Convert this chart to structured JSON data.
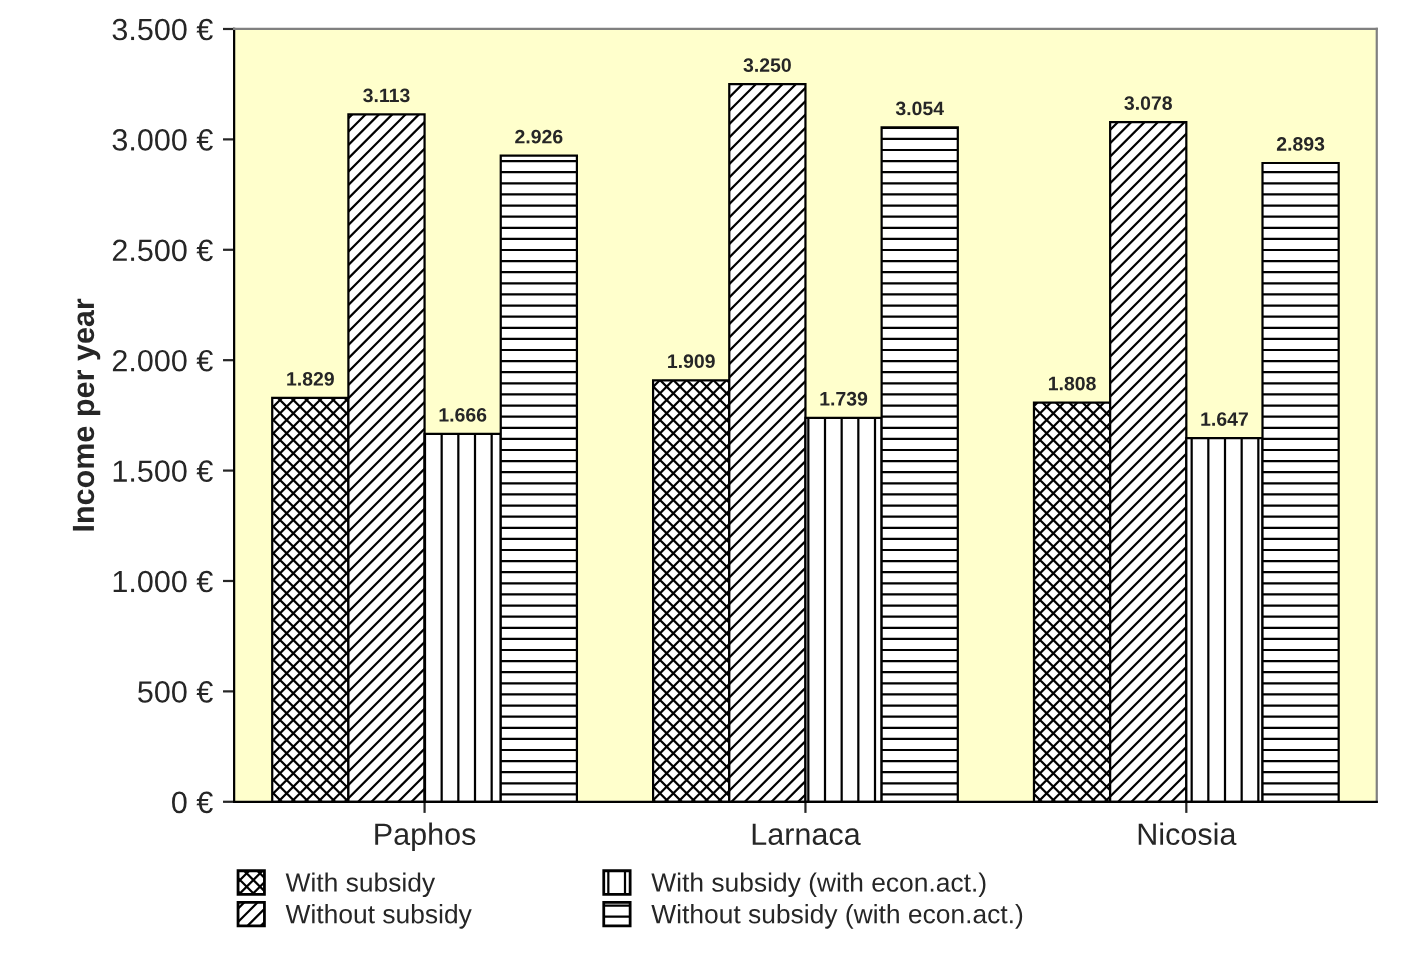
{
  "chart_data": {
    "type": "bar",
    "ylabel": "Income per year",
    "categories": [
      "Paphos",
      "Larnaca",
      "Nicosia"
    ],
    "series": [
      {
        "name": "With subsidy",
        "color": "#000000",
        "values": [
          1829,
          1909,
          1808
        ],
        "value_labels": [
          "1.829",
          "1.909",
          "1.808"
        ]
      },
      {
        "name": "Without subsidy",
        "color": "#000000",
        "values": [
          3113,
          3250,
          3078
        ],
        "value_labels": [
          "3.113",
          "3.250",
          "3.078"
        ]
      },
      {
        "name": "With subsidy (with econ.act.)",
        "color": "#000000",
        "values": [
          1666,
          1739,
          1647
        ],
        "value_labels": [
          "1.666",
          "1.739",
          "1.647"
        ]
      },
      {
        "name": "Without subsidy (with econ.act.)",
        "color": "#000000",
        "values": [
          2926,
          3054,
          2893
        ],
        "value_labels": [
          "2.926",
          "3.054",
          "2.893"
        ]
      }
    ],
    "ylim": [
      0,
      3500
    ],
    "yticks": [
      {
        "value": 0,
        "label": "0 €"
      },
      {
        "value": 500,
        "label": "500 €"
      },
      {
        "value": 1000,
        "label": "1.000 €"
      },
      {
        "value": 1500,
        "label": "1.500 €"
      },
      {
        "value": 2000,
        "label": "2.000 €"
      },
      {
        "value": 2500,
        "label": "2.500 €"
      },
      {
        "value": 3000,
        "label": "3.000 €"
      },
      {
        "value": 3500,
        "label": "3.500 €"
      }
    ],
    "grid": false,
    "legend": "bottom"
  }
}
